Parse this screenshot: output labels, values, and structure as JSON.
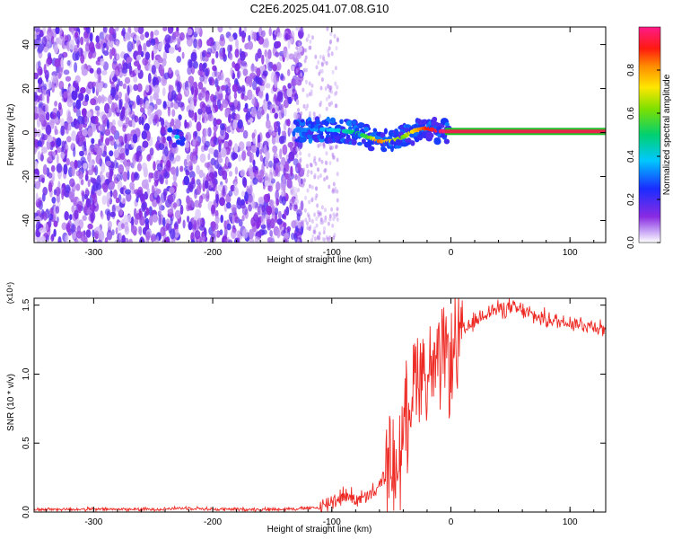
{
  "title": "C2E6.2025.041.07.08.G10",
  "colors": {
    "snr_line": "#ee2a24",
    "band": "#e8264a",
    "band_edge": "#1fbf2a",
    "background": "#ffffff",
    "axis": "#000000"
  },
  "chart_data": [
    {
      "type": "heatmap",
      "title": "C2E6.2025.041.07.08.G10",
      "xlabel": "Height of straight line (km)",
      "ylabel": "Frequency (Hz)",
      "xlim": [
        -350,
        130
      ],
      "ylim": [
        -50,
        48
      ],
      "xticks": [
        -300,
        -200,
        -100,
        0,
        100
      ],
      "yticks": [
        -40,
        -20,
        0,
        20,
        40
      ],
      "grid": false,
      "colorbar": {
        "label": "Normalized spectral amplitude",
        "range": [
          0.0,
          1.0
        ],
        "ticks": [
          0.0,
          0.2,
          0.4,
          0.6,
          0.8
        ],
        "tick_labels": [
          "0.0",
          "0.2",
          "0.4",
          "0.6",
          "0.8"
        ],
        "colormap": "rainbow (white-violet-blue-cyan-green-yellow-orange-red-magenta)"
      },
      "signal_track": {
        "description": "strong narrow line near 0 Hz from about -130 km to 130 km",
        "points": [
          {
            "x": -130,
            "y": 1,
            "amplitude": 0.3
          },
          {
            "x": -110,
            "y": 1.5,
            "amplitude": 0.35
          },
          {
            "x": -95,
            "y": 1,
            "amplitude": 0.4
          },
          {
            "x": -80,
            "y": 0,
            "amplitude": 0.5
          },
          {
            "x": -70,
            "y": -2,
            "amplitude": 0.55
          },
          {
            "x": -60,
            "y": -4,
            "amplitude": 0.85
          },
          {
            "x": -50,
            "y": -4,
            "amplitude": 0.7
          },
          {
            "x": -40,
            "y": -2,
            "amplitude": 0.6
          },
          {
            "x": -30,
            "y": 1,
            "amplitude": 0.75
          },
          {
            "x": -20,
            "y": 2,
            "amplitude": 0.9
          },
          {
            "x": -10,
            "y": 0.5,
            "amplitude": 0.95
          },
          {
            "x": 0,
            "y": 0.5,
            "amplitude": 1.0
          },
          {
            "x": 50,
            "y": 0.5,
            "amplitude": 1.0
          },
          {
            "x": 130,
            "y": 0.5,
            "amplitude": 1.0
          }
        ],
        "isolated_blob": {
          "x": -230,
          "y": -2,
          "amplitude": 0.3
        }
      }
    },
    {
      "type": "line",
      "xlabel": "Height of straight line (km)",
      "ylabel": "SNR (10 * v/v)",
      "scale_label": "(x10⁴)",
      "xlim": [
        -350,
        130
      ],
      "ylim": [
        0,
        1.55
      ],
      "xticks": [
        -300,
        -200,
        -100,
        0,
        100
      ],
      "yticks": [
        0.0,
        0.5,
        1.0,
        1.5
      ],
      "ytick_labels": [
        "0.0",
        "0.5",
        "1.0",
        "1.5"
      ],
      "grid": false,
      "series": [
        {
          "color": "#ee2a24",
          "x": [
            -350,
            -300,
            -250,
            -220,
            -200,
            -150,
            -110,
            -100,
            -90,
            -80,
            -70,
            -60,
            -55,
            -50,
            -45,
            -40,
            -35,
            -30,
            -25,
            -20,
            -15,
            -10,
            -5,
            0,
            5,
            10,
            20,
            30,
            40,
            50,
            60,
            70,
            80,
            90,
            100,
            110,
            120,
            130
          ],
          "y": [
            0.02,
            0.02,
            0.02,
            0.03,
            0.02,
            0.02,
            0.03,
            0.08,
            0.12,
            0.1,
            0.1,
            0.18,
            0.3,
            0.35,
            0.3,
            0.55,
            0.8,
            1.0,
            1.1,
            0.95,
            1.05,
            1.0,
            1.15,
            1.1,
            1.2,
            1.3,
            1.38,
            1.45,
            1.47,
            1.48,
            1.46,
            1.42,
            1.4,
            1.38,
            1.38,
            1.36,
            1.35,
            1.33
          ]
        }
      ]
    }
  ]
}
